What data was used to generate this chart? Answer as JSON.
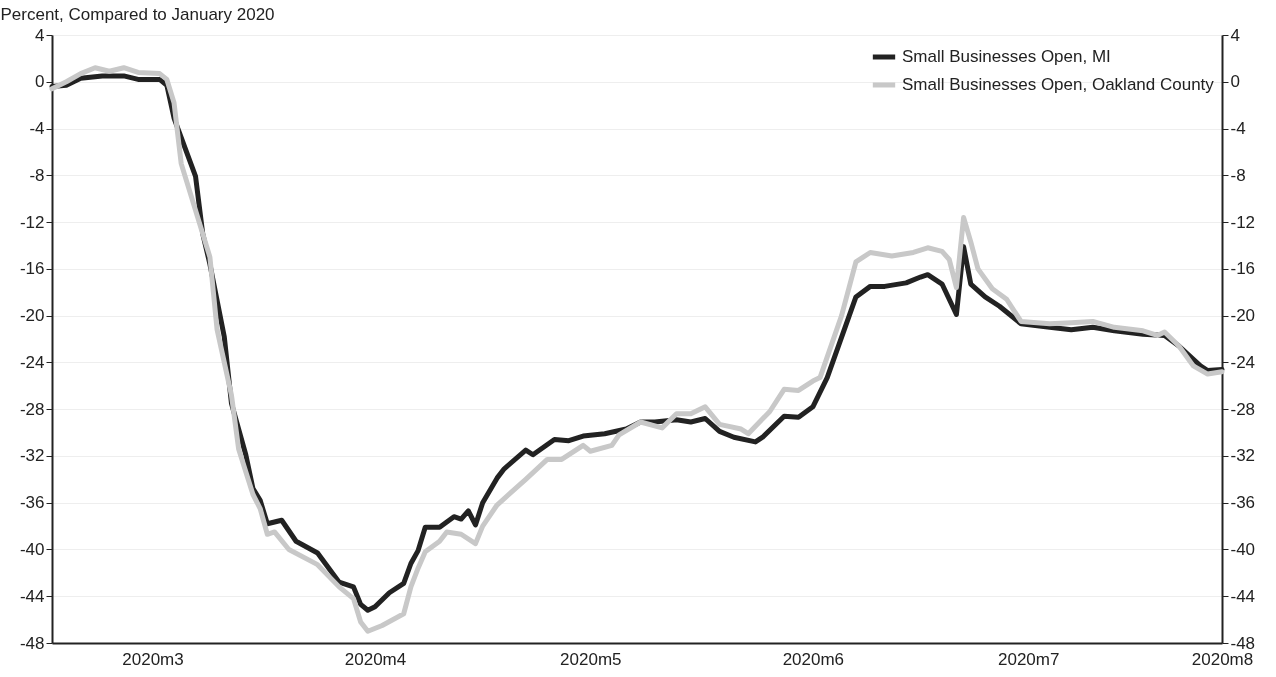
{
  "chart_data": {
    "type": "line",
    "ylabel": "Percent, Compared to January 2020",
    "xlim": [
      "2020-02-16",
      "2020-07-28"
    ],
    "xticks": [
      {
        "value": "2020-03-01",
        "label": "2020m3"
      },
      {
        "value": "2020-04-01",
        "label": "2020m4"
      },
      {
        "value": "2020-05-01",
        "label": "2020m5"
      },
      {
        "value": "2020-06-01",
        "label": "2020m6"
      },
      {
        "value": "2020-07-01",
        "label": "2020m7"
      },
      {
        "value": "2020-07-28",
        "label": "2020m8"
      }
    ],
    "ylim": [
      -48,
      4
    ],
    "yticks": [
      -48,
      -44,
      -40,
      -36,
      -32,
      -28,
      -24,
      -20,
      -16,
      -12,
      -8,
      -4,
      0,
      4
    ],
    "y2lim": [
      -48,
      4
    ],
    "y2ticks": [
      -48,
      -44,
      -40,
      -36,
      -32,
      -28,
      -24,
      -20,
      -16,
      -12,
      -8,
      -4,
      0,
      4
    ],
    "grid": "y",
    "legend": "top right",
    "series": [
      {
        "name": "Small Businesses Open, MI",
        "color": "#222222",
        "x": [
          "2020-02-16",
          "2020-02-18",
          "2020-02-20",
          "2020-02-23",
          "2020-02-26",
          "2020-02-28",
          "2020-03-02",
          "2020-03-03",
          "2020-03-04",
          "2020-03-07",
          "2020-03-08",
          "2020-03-09",
          "2020-03-11",
          "2020-03-12",
          "2020-03-14",
          "2020-03-15",
          "2020-03-16",
          "2020-03-17",
          "2020-03-19",
          "2020-03-21",
          "2020-03-24",
          "2020-03-27",
          "2020-03-29",
          "2020-03-30",
          "2020-03-31",
          "2020-04-01",
          "2020-04-03",
          "2020-04-05",
          "2020-04-06",
          "2020-04-07",
          "2020-04-08",
          "2020-04-10",
          "2020-04-12",
          "2020-04-13",
          "2020-04-14",
          "2020-04-15",
          "2020-04-16",
          "2020-04-18",
          "2020-04-19",
          "2020-04-22",
          "2020-04-23",
          "2020-04-26",
          "2020-04-28",
          "2020-04-30",
          "2020-05-03",
          "2020-05-06",
          "2020-05-08",
          "2020-05-10",
          "2020-05-13",
          "2020-05-15",
          "2020-05-17",
          "2020-05-19",
          "2020-05-21",
          "2020-05-24",
          "2020-05-25",
          "2020-05-28",
          "2020-05-30",
          "2020-06-01",
          "2020-06-03",
          "2020-06-07",
          "2020-06-09",
          "2020-06-11",
          "2020-06-14",
          "2020-06-16",
          "2020-06-17",
          "2020-06-19",
          "2020-06-21",
          "2020-06-22",
          "2020-06-23",
          "2020-06-25",
          "2020-06-27",
          "2020-06-30",
          "2020-07-04",
          "2020-07-07",
          "2020-07-10",
          "2020-07-13",
          "2020-07-17",
          "2020-07-20",
          "2020-07-22",
          "2020-07-25",
          "2020-07-26",
          "2020-07-28"
        ],
        "values": [
          -0.4,
          -0.3,
          0.3,
          0.5,
          0.5,
          0.2,
          0.2,
          -0.3,
          -3.1,
          -8.1,
          -13,
          -15.6,
          -21.8,
          -27.5,
          -31.9,
          -34.8,
          -35.8,
          -37.8,
          -37.5,
          -39.3,
          -40.3,
          -42.8,
          -43.2,
          -44.7,
          -45.2,
          -44.9,
          -43.7,
          -42.9,
          -41.2,
          -40.1,
          -38.1,
          -38.1,
          -37.2,
          -37.4,
          -36.7,
          -37.9,
          -36,
          -33.9,
          -33.1,
          -31.5,
          -31.9,
          -30.6,
          -30.7,
          -30.3,
          -30.1,
          -29.7,
          -29.1,
          -29.1,
          -28.9,
          -29.1,
          -28.8,
          -29.9,
          -30.4,
          -30.8,
          -30.4,
          -28.6,
          -28.7,
          -27.8,
          -25.3,
          -18.4,
          -17.5,
          -17.5,
          -17.2,
          -16.7,
          -16.5,
          -17.3,
          -19.9,
          -14.1,
          -17.3,
          -18.4,
          -19.2,
          -20.7,
          -21,
          -21.2,
          -21,
          -21.3,
          -21.6,
          -21.7,
          -22.6,
          -24.3,
          -24.7,
          -24.6
        ]
      },
      {
        "name": "Small Businesses Open, Oakland County",
        "color": "#c8c8c8",
        "x": [
          "2020-02-16",
          "2020-02-18",
          "2020-02-20",
          "2020-02-22",
          "2020-02-24",
          "2020-02-26",
          "2020-02-28",
          "2020-03-02",
          "2020-03-03",
          "2020-03-04",
          "2020-03-05",
          "2020-03-08",
          "2020-03-09",
          "2020-03-10",
          "2020-03-12",
          "2020-03-13",
          "2020-03-15",
          "2020-03-16",
          "2020-03-17",
          "2020-03-18",
          "2020-03-20",
          "2020-03-24",
          "2020-03-27",
          "2020-03-29",
          "2020-03-30",
          "2020-03-31",
          "2020-04-02",
          "2020-04-05",
          "2020-04-06",
          "2020-04-07",
          "2020-04-08",
          "2020-04-10",
          "2020-04-11",
          "2020-04-13",
          "2020-04-15",
          "2020-04-16",
          "2020-04-18",
          "2020-04-22",
          "2020-04-25",
          "2020-04-27",
          "2020-04-30",
          "2020-05-01",
          "2020-05-04",
          "2020-05-05",
          "2020-05-08",
          "2020-05-11",
          "2020-05-13",
          "2020-05-15",
          "2020-05-17",
          "2020-05-19",
          "2020-05-22",
          "2020-05-23",
          "2020-05-26",
          "2020-05-28",
          "2020-05-30",
          "2020-06-01",
          "2020-06-02",
          "2020-06-05",
          "2020-06-07",
          "2020-06-09",
          "2020-06-12",
          "2020-06-15",
          "2020-06-17",
          "2020-06-19",
          "2020-06-20",
          "2020-06-21",
          "2020-06-22",
          "2020-06-23",
          "2020-06-24",
          "2020-06-26",
          "2020-06-28",
          "2020-06-30",
          "2020-07-04",
          "2020-07-07",
          "2020-07-10",
          "2020-07-13",
          "2020-07-17",
          "2020-07-19",
          "2020-07-20",
          "2020-07-22",
          "2020-07-24",
          "2020-07-26",
          "2020-07-28"
        ],
        "values": [
          -0.6,
          0,
          0.7,
          1.2,
          0.9,
          1.2,
          0.8,
          0.7,
          0.2,
          -1.8,
          -7,
          -13,
          -15,
          -21.2,
          -26.8,
          -31.4,
          -35.3,
          -36.5,
          -38.7,
          -38.5,
          -40,
          -41.3,
          -43.2,
          -44.2,
          -46.2,
          -47,
          -46.5,
          -45.5,
          -43.2,
          -41.6,
          -40.2,
          -39.3,
          -38.5,
          -38.7,
          -39.5,
          -38,
          -36.2,
          -34,
          -32.3,
          -32.3,
          -31.1,
          -31.6,
          -31.1,
          -30.2,
          -29.1,
          -29.6,
          -28.4,
          -28.4,
          -27.8,
          -29.3,
          -29.7,
          -30.1,
          -28.2,
          -26.3,
          -26.4,
          -25.6,
          -25.3,
          -20,
          -15.4,
          -14.6,
          -14.9,
          -14.6,
          -14.2,
          -14.5,
          -15.2,
          -17.6,
          -11.6,
          -13.7,
          -16,
          -17.7,
          -18.6,
          -20.5,
          -20.7,
          -20.6,
          -20.5,
          -21,
          -21.3,
          -21.7,
          -21.4,
          -22.6,
          -24.3,
          -25,
          -24.8
        ]
      }
    ]
  }
}
